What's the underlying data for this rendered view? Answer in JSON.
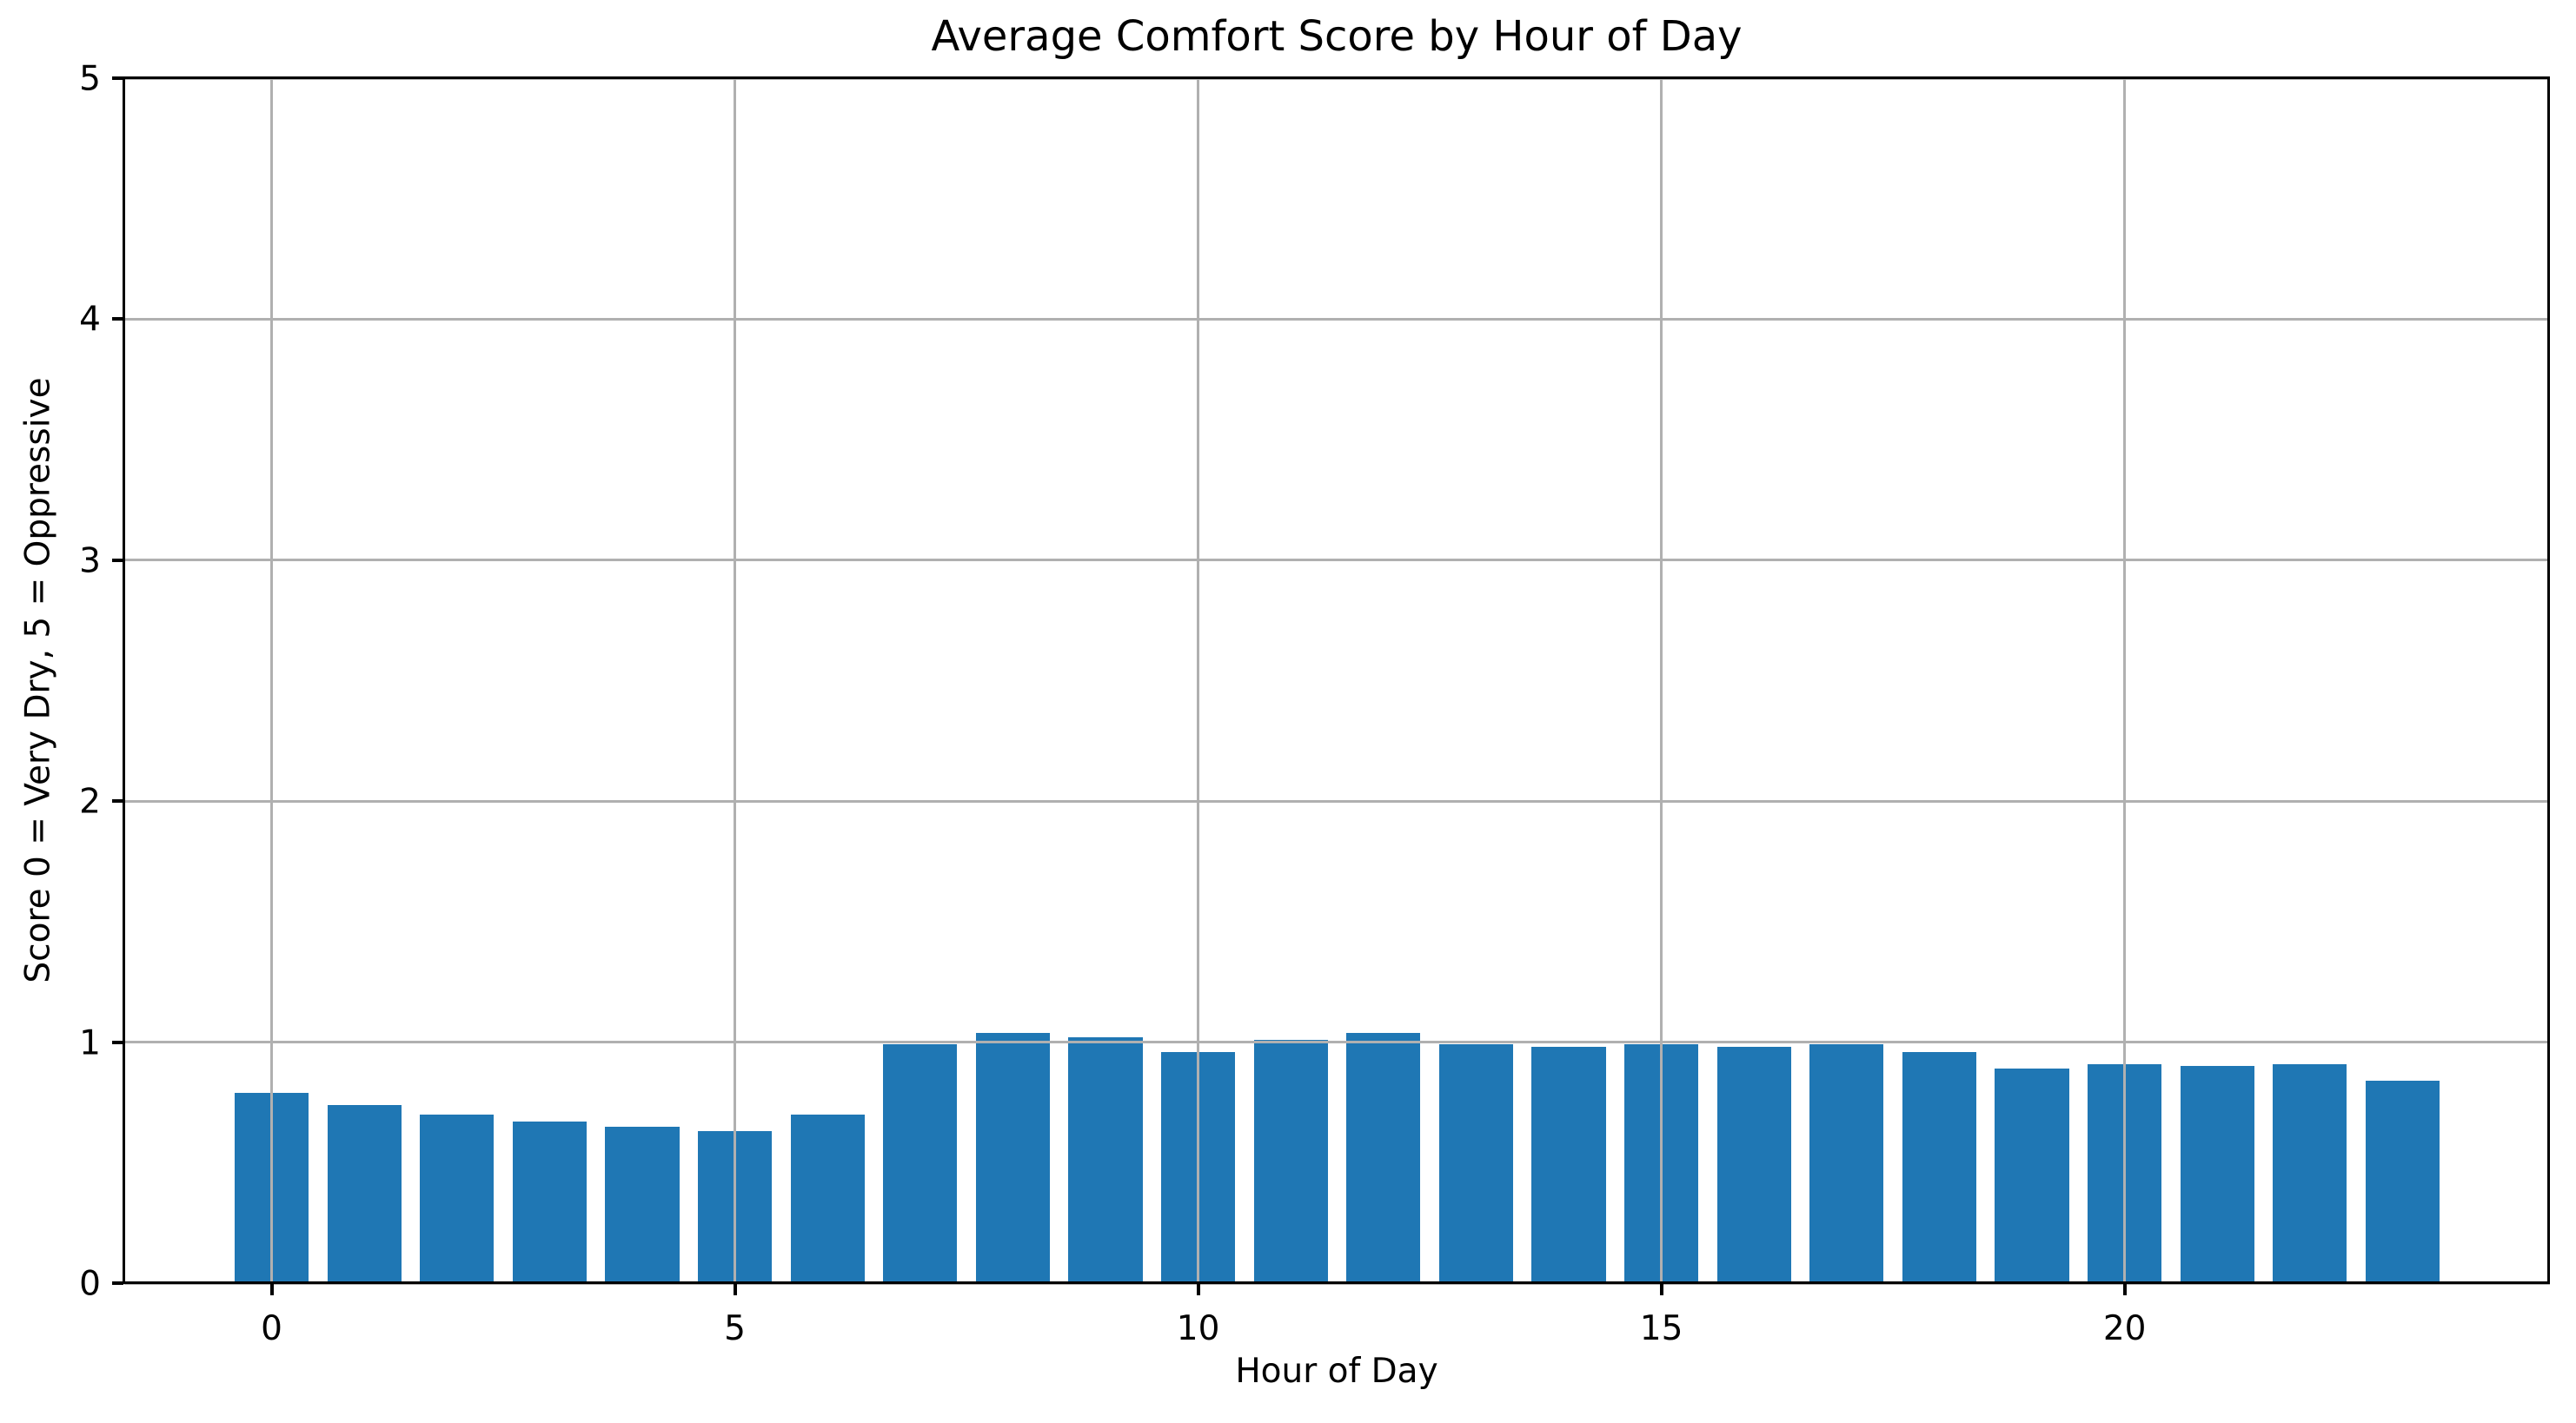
{
  "chart_data": {
    "type": "bar",
    "title": "Average Comfort Score by Hour of Day",
    "xlabel": "Hour of Day",
    "ylabel": "Score 0 = Very Dry, 5 = Oppressive",
    "categories": [
      0,
      1,
      2,
      3,
      4,
      5,
      6,
      7,
      8,
      9,
      10,
      11,
      12,
      13,
      14,
      15,
      16,
      17,
      18,
      19,
      20,
      21,
      22,
      23
    ],
    "values": [
      0.79,
      0.74,
      0.7,
      0.67,
      0.65,
      0.63,
      0.7,
      0.99,
      1.04,
      1.02,
      0.96,
      1.01,
      1.04,
      0.99,
      0.98,
      0.99,
      0.98,
      0.99,
      0.96,
      0.89,
      0.91,
      0.9,
      0.91,
      0.84
    ],
    "bar_width": 0.8,
    "bar_color": "#1f77b4",
    "xlim": [
      -1.59,
      24.59
    ],
    "ylim": [
      0,
      5
    ],
    "xticks": [
      0,
      5,
      10,
      15,
      20
    ],
    "yticks": [
      0,
      1,
      2,
      3,
      4,
      5
    ],
    "grid": true,
    "grid_color": "#b0b0b0",
    "grid_above_bars": true,
    "background": "#ffffff",
    "legend": null
  }
}
